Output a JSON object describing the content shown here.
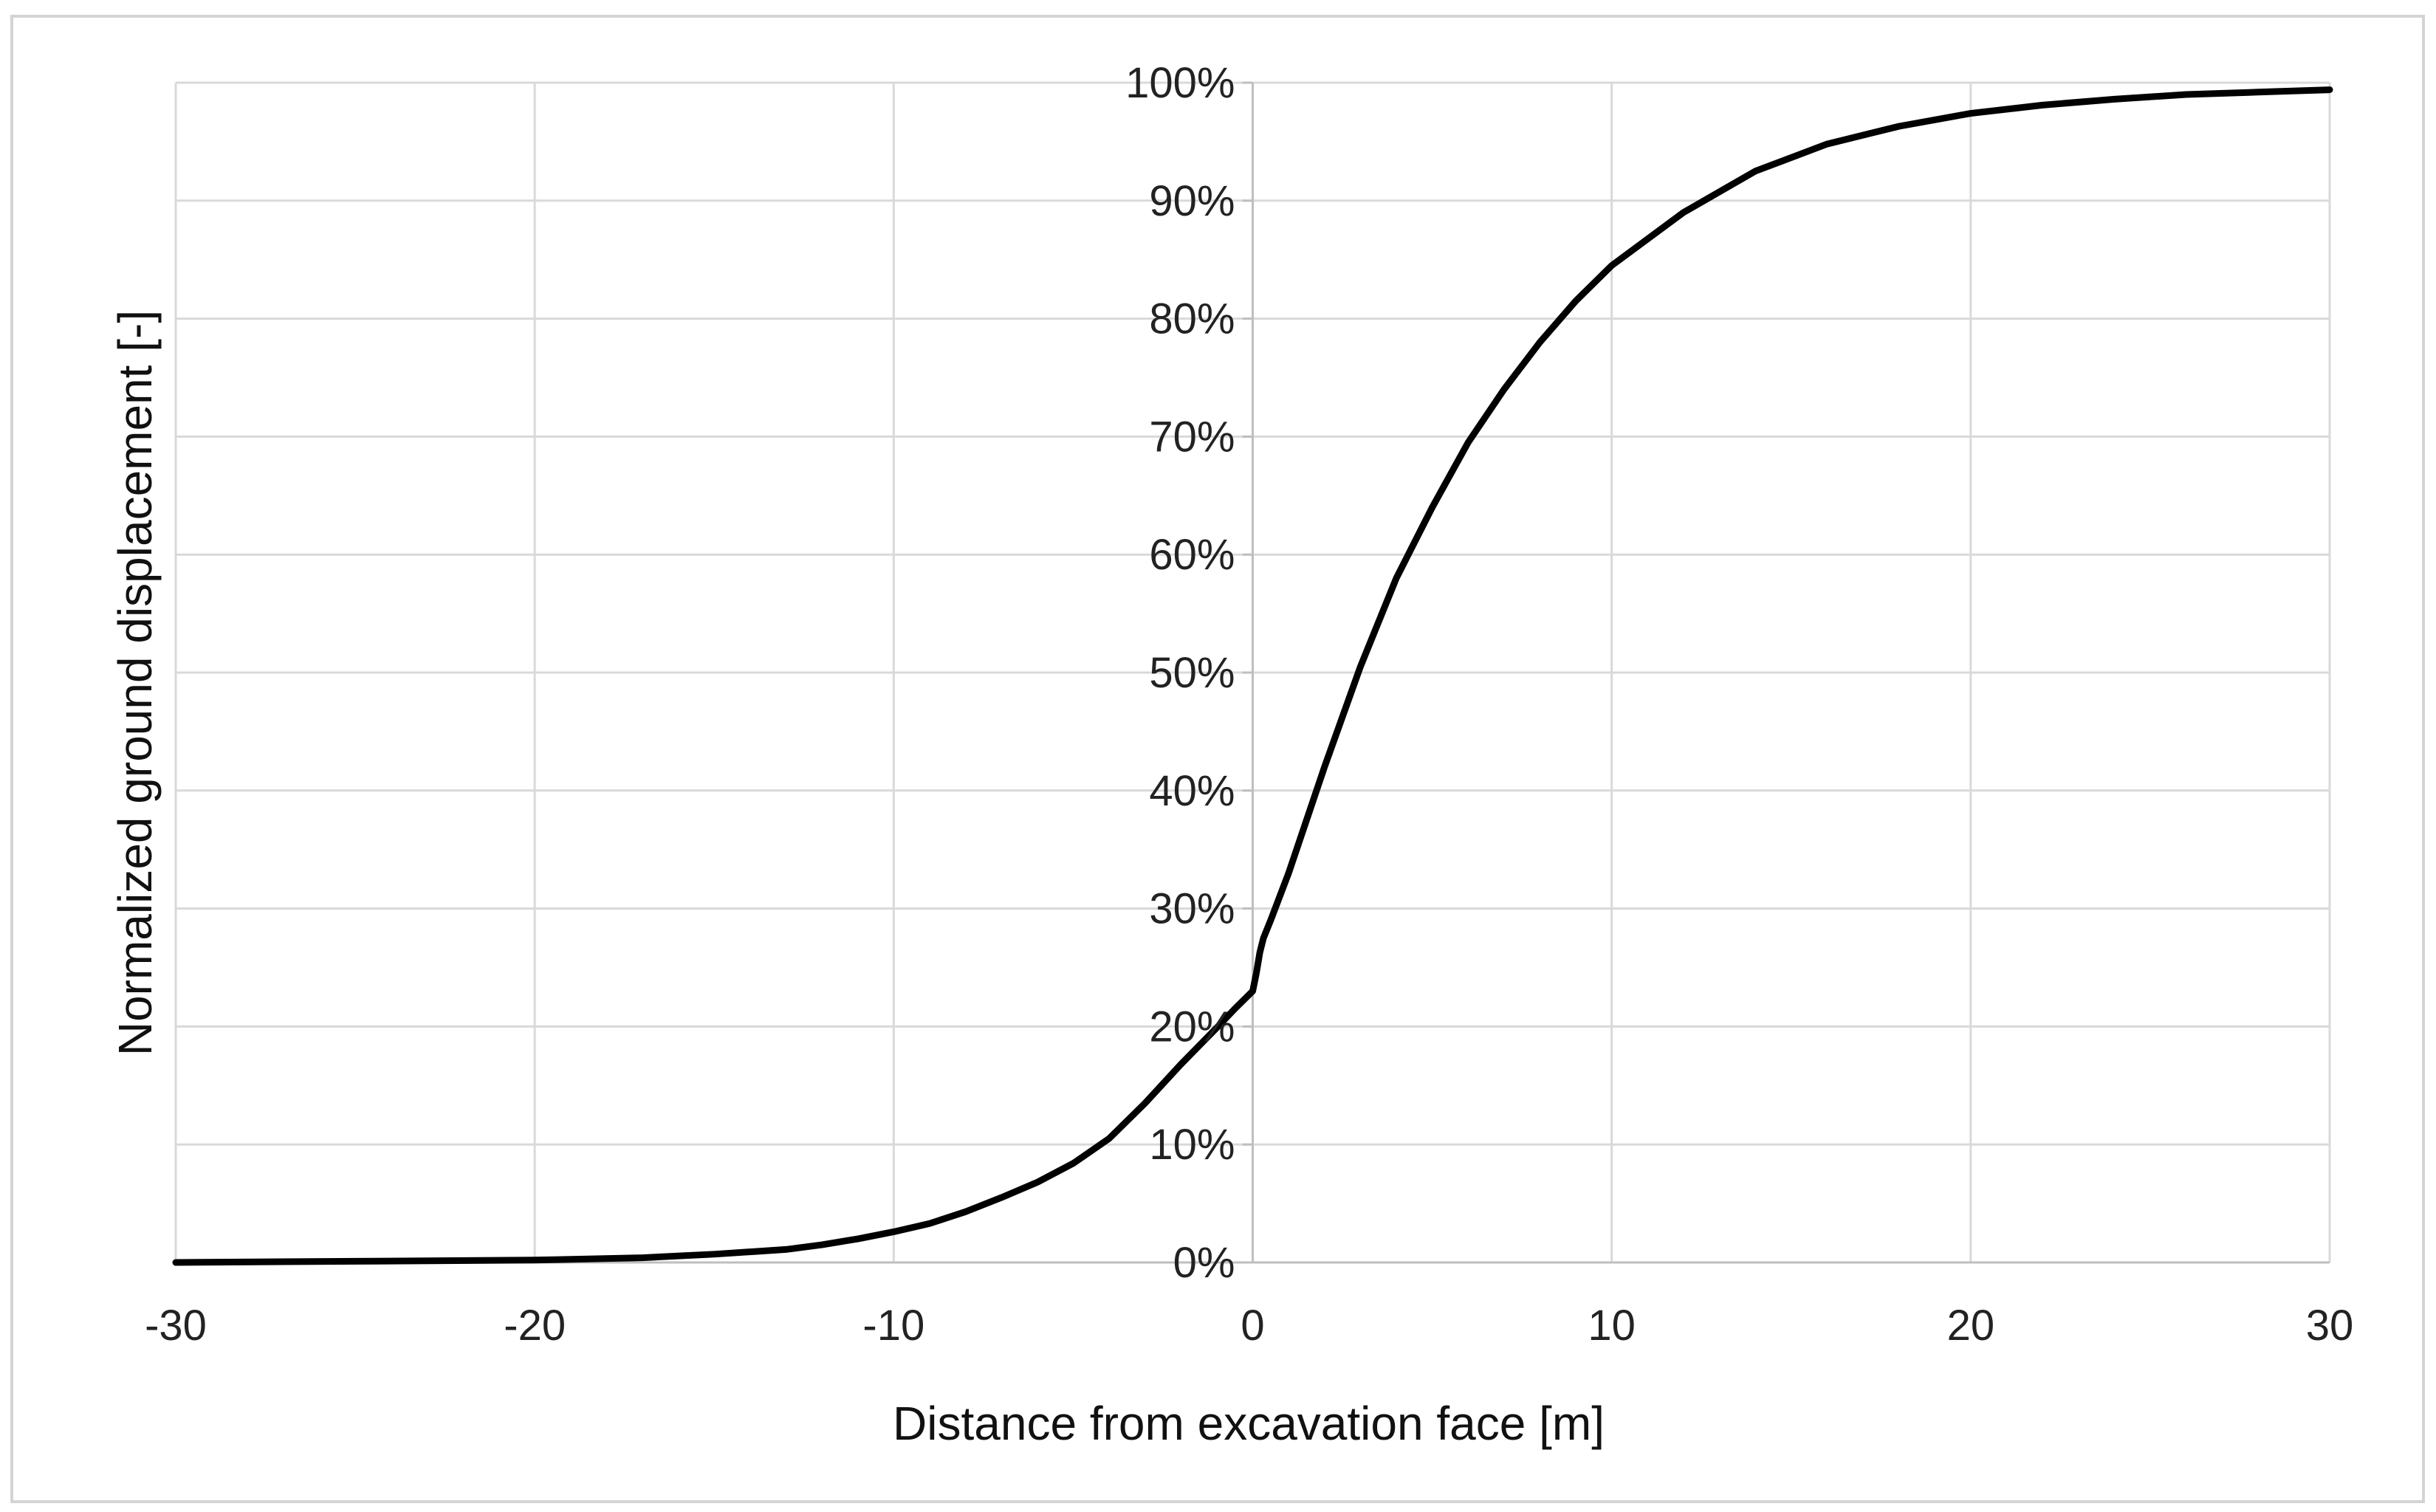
{
  "chart_data": {
    "type": "line",
    "title": "",
    "xlabel": "Distance from excavation face [m]",
    "ylabel": "Normalized ground displacement [-]",
    "xlim": [
      -30,
      30
    ],
    "ylim": [
      0,
      100
    ],
    "x_ticks": [
      -30,
      -20,
      -10,
      0,
      10,
      20,
      30
    ],
    "x_tick_labels": [
      "-30",
      "-20",
      "-10",
      "0",
      "10",
      "20",
      "30"
    ],
    "y_ticks": [
      0,
      10,
      20,
      30,
      40,
      50,
      60,
      70,
      80,
      90,
      100
    ],
    "y_tick_labels": [
      "0%",
      "10%",
      "20%",
      "30%",
      "40%",
      "50%",
      "60%",
      "70%",
      "80%",
      "90%",
      "100%"
    ],
    "grid": true,
    "legend": false,
    "series": [
      {
        "name": "Normalized ground displacement",
        "color": "#000000",
        "x": [
          -30,
          -25,
          -20,
          -17,
          -15,
          -13,
          -12,
          -11,
          -10,
          -9,
          -8,
          -7,
          -6,
          -5,
          -4,
          -3,
          -2,
          -1,
          -0.5,
          0,
          0.1,
          0.2,
          0.3,
          0.5,
          1,
          1.5,
          2,
          3,
          4,
          5,
          6,
          7,
          8,
          9,
          10,
          12,
          14,
          16,
          18,
          20,
          22,
          24,
          26,
          28,
          30
        ],
        "y": [
          0,
          0.1,
          0.2,
          0.4,
          0.7,
          1.1,
          1.5,
          2.0,
          2.6,
          3.3,
          4.3,
          5.5,
          6.8,
          8.4,
          10.5,
          13.5,
          16.8,
          19.9,
          21.5,
          23.0,
          24.5,
          26.3,
          27.5,
          29.0,
          33.0,
          37.5,
          42.0,
          50.5,
          58.0,
          64.0,
          69.5,
          74.0,
          78.0,
          81.5,
          84.5,
          89.0,
          92.5,
          94.8,
          96.3,
          97.4,
          98.1,
          98.6,
          99.0,
          99.2,
          99.4
        ]
      }
    ]
  }
}
